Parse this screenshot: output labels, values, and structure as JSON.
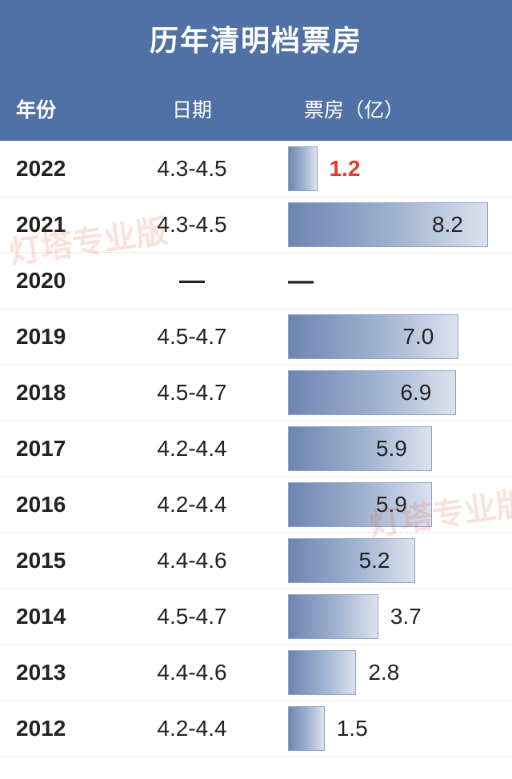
{
  "title": "历年清明档票房",
  "columns": {
    "year": "年份",
    "date": "日期",
    "value": "票房（亿）"
  },
  "max_value": 8.2,
  "bar_area_width": 250,
  "colors": {
    "header_bg": "#5071a5",
    "header_text": "#ffffff",
    "bar_gradient_start": "#6d85b0",
    "bar_gradient_end": "#dbe2ee",
    "bar_border": "#8fa2c4",
    "highlight": "#e63b2e",
    "row_border": "#e8e8e8",
    "text": "#222222"
  },
  "rows": [
    {
      "year": "2022",
      "date": "4.3-4.5",
      "value": 1.2,
      "label": "1.2",
      "highlight": true,
      "label_pos": "right"
    },
    {
      "year": "2021",
      "date": "4.3-4.5",
      "value": 8.2,
      "label": "8.2",
      "highlight": false,
      "label_pos": "inside"
    },
    {
      "year": "2020",
      "date": "—",
      "value": null,
      "label": "—",
      "highlight": false,
      "label_pos": "dash"
    },
    {
      "year": "2019",
      "date": "4.5-4.7",
      "value": 7.0,
      "label": "7.0",
      "highlight": false,
      "label_pos": "inside"
    },
    {
      "year": "2018",
      "date": "4.5-4.7",
      "value": 6.9,
      "label": "6.9",
      "highlight": false,
      "label_pos": "inside"
    },
    {
      "year": "2017",
      "date": "4.2-4.4",
      "value": 5.9,
      "label": "5.9",
      "highlight": false,
      "label_pos": "inside"
    },
    {
      "year": "2016",
      "date": "4.2-4.4",
      "value": 5.9,
      "label": "5.9",
      "highlight": false,
      "label_pos": "inside"
    },
    {
      "year": "2015",
      "date": "4.4-4.6",
      "value": 5.2,
      "label": "5.2",
      "highlight": false,
      "label_pos": "inside"
    },
    {
      "year": "2014",
      "date": "4.5-4.7",
      "value": 3.7,
      "label": "3.7",
      "highlight": false,
      "label_pos": "right"
    },
    {
      "year": "2013",
      "date": "4.4-4.6",
      "value": 2.8,
      "label": "2.8",
      "highlight": false,
      "label_pos": "right"
    },
    {
      "year": "2012",
      "date": "4.2-4.4",
      "value": 1.5,
      "label": "1.5",
      "highlight": false,
      "label_pos": "right"
    }
  ],
  "watermarks": [
    "灯塔专业版",
    "灯塔专业版"
  ]
}
